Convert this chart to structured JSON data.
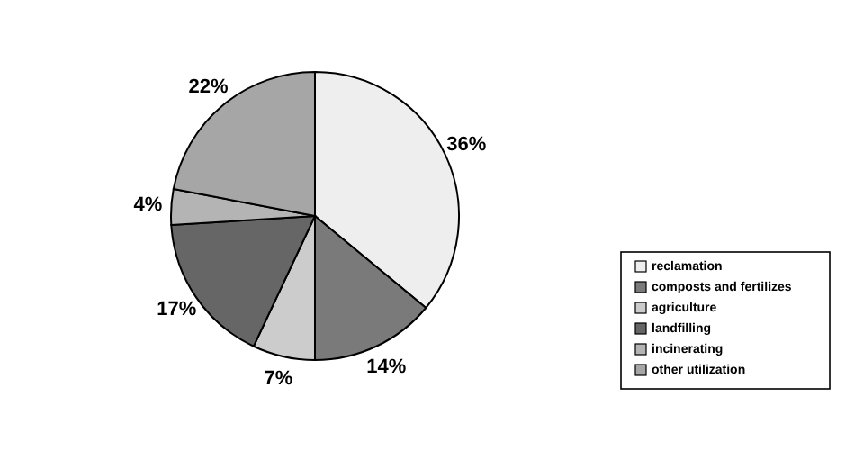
{
  "chart_data": {
    "type": "pie",
    "categories": [
      "reclamation",
      "composts and fertilizes",
      "agriculture",
      "landfilling",
      "incinerating",
      "other utilization"
    ],
    "values": [
      36,
      14,
      7,
      17,
      4,
      22
    ],
    "value_labels": [
      "36%",
      "14%",
      "7%",
      "17%",
      "4%",
      "22%"
    ],
    "colors": [
      "#eeeeee",
      "#7a7a7a",
      "#cccccc",
      "#666666",
      "#b4b4b4",
      "#a6a6a6"
    ],
    "legend": "right"
  }
}
